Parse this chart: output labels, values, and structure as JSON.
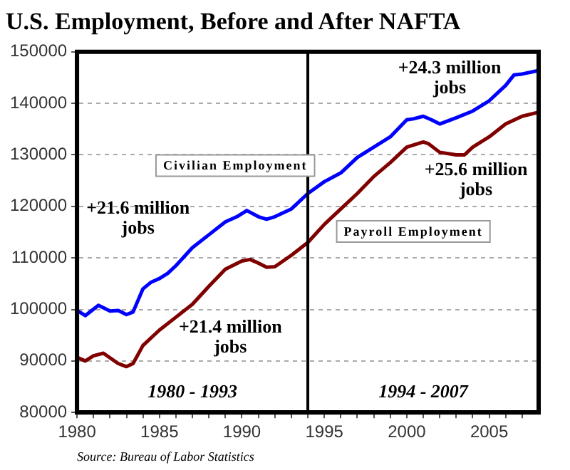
{
  "chart_data": {
    "type": "line",
    "title": "U.S. Employment, Before and After NAFTA",
    "xlim": [
      1980,
      2008
    ],
    "xticks": [
      1980,
      {
        "value": 1981,
        "label": null
      },
      {
        "value": 1982,
        "label": null
      },
      {
        "value": 1983,
        "label": null
      },
      {
        "value": 1984,
        "label": null
      },
      1985,
      {
        "value": 1986,
        "label": null
      },
      {
        "value": 1987,
        "label": null
      },
      {
        "value": 1988,
        "label": null
      },
      {
        "value": 1989,
        "label": null
      },
      1990,
      {
        "value": 1991,
        "label": null
      },
      {
        "value": 1992,
        "label": null
      },
      {
        "value": 1993,
        "label": null
      },
      {
        "value": 1994,
        "label": null
      },
      1995,
      {
        "value": 1996,
        "label": null
      },
      {
        "value": 1997,
        "label": null
      },
      {
        "value": 1998,
        "label": null
      },
      {
        "value": 1999,
        "label": null
      },
      2000,
      {
        "value": 2001,
        "label": null
      },
      {
        "value": 2002,
        "label": null
      },
      {
        "value": 2003,
        "label": null
      },
      {
        "value": 2004,
        "label": null
      },
      2005,
      {
        "value": 2006,
        "label": null
      },
      {
        "value": 2007,
        "label": null
      }
    ],
    "ylim": [
      80000,
      150000
    ],
    "yticks": [
      80000,
      90000,
      100000,
      110000,
      120000,
      130000,
      140000,
      150000
    ],
    "grid": "y",
    "legend": false,
    "series": [
      {
        "name": "Civilian Employment",
        "color": "#0000ff",
        "x": [
          1980,
          1980.5,
          1981.3,
          1982,
          1982.5,
          1983,
          1983.4,
          1984,
          1984.5,
          1985,
          1985.5,
          1986,
          1987,
          1988,
          1989,
          1989.7,
          1990.3,
          1991,
          1991.5,
          1992,
          1993,
          1994,
          1995,
          1996,
          1997,
          1998,
          1999,
          2000,
          2000.4,
          2001,
          2001.5,
          2002,
          2003,
          2004,
          2005,
          2006,
          2006.5,
          2007,
          2007.9
        ],
        "values": [
          99800,
          98800,
          100800,
          99700,
          99800,
          99000,
          99500,
          104000,
          105300,
          106000,
          107000,
          108500,
          112000,
          114500,
          117000,
          118000,
          119200,
          118000,
          117500,
          118000,
          119500,
          122500,
          124800,
          126500,
          129500,
          131500,
          133500,
          136800,
          137000,
          137500,
          136800,
          136000,
          137200,
          138500,
          140500,
          143500,
          145500,
          145700,
          146300
        ]
      },
      {
        "name": "Payroll Employment",
        "color": "#800000",
        "x": [
          1980,
          1980.5,
          1981,
          1981.6,
          1982.5,
          1983,
          1983.4,
          1984,
          1985,
          1986,
          1987,
          1988,
          1989,
          1990,
          1990.5,
          1991,
          1991.5,
          1992,
          1993,
          1994,
          1995,
          1996,
          1997,
          1998,
          1999,
          2000,
          2001,
          2001.3,
          2002,
          2003,
          2003.5,
          2004,
          2005,
          2006,
          2007,
          2007.9
        ],
        "values": [
          90700,
          90000,
          91000,
          91500,
          89500,
          88900,
          89500,
          93000,
          96000,
          98500,
          101000,
          104500,
          107800,
          109400,
          109700,
          109000,
          108200,
          108300,
          110500,
          113000,
          116500,
          119500,
          122500,
          125800,
          128500,
          131500,
          132500,
          132200,
          130500,
          130000,
          130000,
          131500,
          133500,
          136000,
          137500,
          138200
        ]
      }
    ],
    "ref_lines": [
      {
        "axis": "x",
        "value": 1994,
        "color": "#000000"
      }
    ],
    "annotations": [
      "+21.6 million\njobs",
      "+21.4 million\njobs",
      "+24.3 million\njobs",
      "+25.6 million\njobs",
      "1980 - 1993",
      "1994 - 2007",
      "Source: Bureau of Labor Statistics"
    ]
  }
}
